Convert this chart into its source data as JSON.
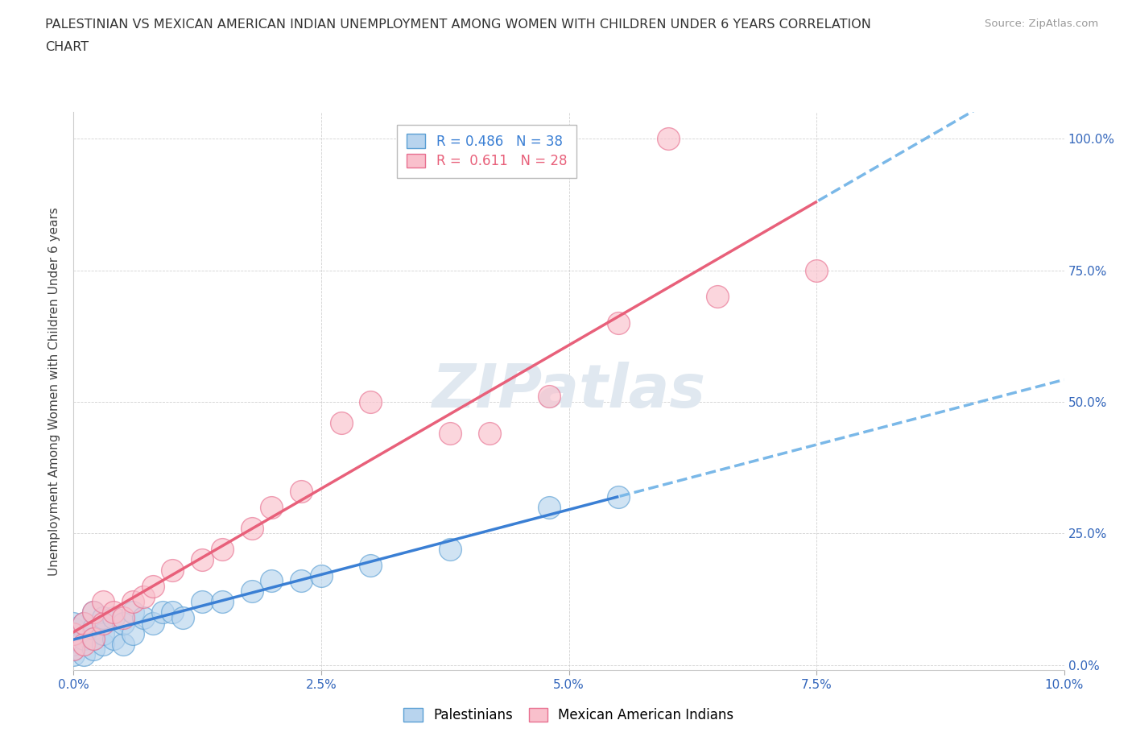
{
  "title_line1": "PALESTINIAN VS MEXICAN AMERICAN INDIAN UNEMPLOYMENT AMONG WOMEN WITH CHILDREN UNDER 6 YEARS CORRELATION",
  "title_line2": "CHART",
  "source": "Source: ZipAtlas.com",
  "ylabel": "Unemployment Among Women with Children Under 6 years",
  "xlim": [
    0.0,
    0.1
  ],
  "ylim": [
    -0.01,
    1.05
  ],
  "xtick_vals": [
    0.0,
    0.025,
    0.05,
    0.075,
    0.1
  ],
  "xtick_labels": [
    "0.0%",
    "2.5%",
    "5.0%",
    "7.5%",
    "10.0%"
  ],
  "ytick_vals": [
    0.0,
    0.25,
    0.5,
    0.75,
    1.0
  ],
  "ytick_labels": [
    "0.0%",
    "25.0%",
    "50.0%",
    "75.0%",
    "100.0%"
  ],
  "legend_r1": "R = 0.486   N = 38",
  "legend_r2": "R =  0.611   N = 28",
  "blue_scatter_color": "#b8d4ee",
  "blue_edge_color": "#5a9fd4",
  "pink_scatter_color": "#f9c0cc",
  "pink_edge_color": "#e87090",
  "line_blue_color": "#3a7fd4",
  "line_pink_color": "#e8607a",
  "line_dash_color": "#7ab8e8",
  "palestinians_x": [
    0.0,
    0.0,
    0.0,
    0.0,
    0.0,
    0.0,
    0.0,
    0.001,
    0.001,
    0.001,
    0.002,
    0.002,
    0.002,
    0.002,
    0.003,
    0.003,
    0.003,
    0.004,
    0.004,
    0.005,
    0.005,
    0.006,
    0.006,
    0.007,
    0.008,
    0.009,
    0.01,
    0.011,
    0.013,
    0.015,
    0.018,
    0.02,
    0.023,
    0.025,
    0.03,
    0.038,
    0.048,
    0.055
  ],
  "palestinians_y": [
    0.02,
    0.03,
    0.04,
    0.05,
    0.06,
    0.07,
    0.08,
    0.02,
    0.05,
    0.08,
    0.03,
    0.05,
    0.07,
    0.1,
    0.04,
    0.06,
    0.09,
    0.05,
    0.09,
    0.04,
    0.08,
    0.06,
    0.1,
    0.09,
    0.08,
    0.1,
    0.1,
    0.09,
    0.12,
    0.12,
    0.14,
    0.16,
    0.16,
    0.17,
    0.19,
    0.22,
    0.3,
    0.32
  ],
  "mexican_x": [
    0.0,
    0.0,
    0.001,
    0.001,
    0.002,
    0.002,
    0.003,
    0.003,
    0.004,
    0.005,
    0.006,
    0.007,
    0.008,
    0.01,
    0.013,
    0.015,
    0.018,
    0.02,
    0.023,
    0.027,
    0.03,
    0.038,
    0.042,
    0.048,
    0.055,
    0.06,
    0.065,
    0.075
  ],
  "mexican_y": [
    0.03,
    0.06,
    0.04,
    0.08,
    0.05,
    0.1,
    0.08,
    0.12,
    0.1,
    0.09,
    0.12,
    0.13,
    0.15,
    0.18,
    0.2,
    0.22,
    0.26,
    0.3,
    0.33,
    0.46,
    0.5,
    0.44,
    0.44,
    0.51,
    0.65,
    1.0,
    0.7,
    0.75
  ]
}
